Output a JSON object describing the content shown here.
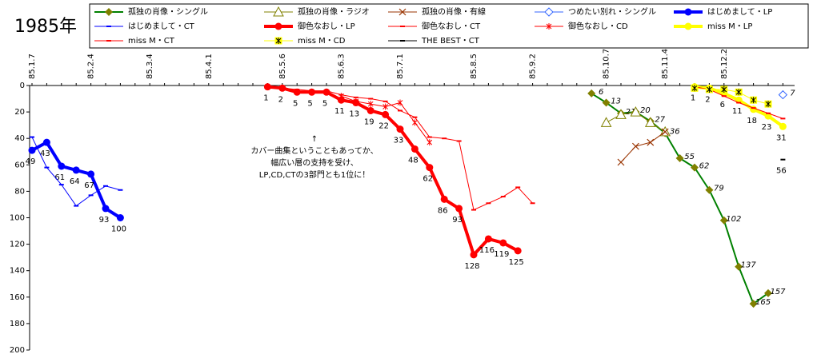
{
  "chart_data": {
    "type": "line",
    "title": "1985年",
    "annotation": [
      "↑",
      "カバー曲集ということもあってか、",
      "幅広い層の支持を受け、",
      "LP,CD,CTの3部門とも1位に！"
    ],
    "categories": [
      "85.1.7",
      null,
      null,
      null,
      "85.2.4",
      null,
      null,
      null,
      "85.3.4",
      null,
      null,
      null,
      "85.4.1",
      null,
      null,
      null,
      null,
      "85.5.6",
      null,
      null,
      null,
      "85.6.3",
      null,
      null,
      null,
      "85.7.1",
      null,
      null,
      null,
      null,
      "85.8.5",
      null,
      null,
      null,
      "85.9.2",
      null,
      null,
      null,
      null,
      "85.10.7",
      null,
      null,
      null,
      "85.11.4",
      null,
      null,
      null,
      "85.12.2",
      null,
      null,
      null,
      null
    ],
    "ylim": [
      200,
      0
    ],
    "yticks": [
      0,
      20,
      40,
      60,
      80,
      100,
      120,
      140,
      160,
      180,
      200
    ],
    "grid": false,
    "series": [
      {
        "name": "孤独の肖像・シングル",
        "color": "#808000",
        "line_color": "#008000",
        "marker": "diamond",
        "line_width": 2,
        "data_labels": true,
        "label_italic": true,
        "values": [
          null,
          null,
          null,
          null,
          null,
          null,
          null,
          null,
          null,
          null,
          null,
          null,
          null,
          null,
          null,
          null,
          null,
          null,
          null,
          null,
          null,
          null,
          null,
          null,
          null,
          null,
          null,
          null,
          null,
          null,
          null,
          null,
          null,
          null,
          null,
          null,
          null,
          null,
          6,
          13,
          21,
          20,
          27,
          36,
          55,
          62,
          79,
          102,
          137,
          165,
          157,
          null
        ]
      },
      {
        "name": "孤独の肖像・ラジオ",
        "color": "#808000",
        "marker": "triangle-open",
        "line_width": 1,
        "values": [
          null,
          null,
          null,
          null,
          null,
          null,
          null,
          null,
          null,
          null,
          null,
          null,
          null,
          null,
          null,
          null,
          null,
          null,
          null,
          null,
          null,
          null,
          null,
          null,
          null,
          null,
          null,
          null,
          null,
          null,
          null,
          null,
          null,
          null,
          null,
          null,
          null,
          null,
          null,
          28,
          22,
          20,
          28,
          35,
          null,
          null,
          null,
          null,
          null,
          null,
          null,
          null
        ]
      },
      {
        "name": "孤独の肖像・有線",
        "color": "#993300",
        "marker": "x",
        "line_width": 1,
        "values": [
          null,
          null,
          null,
          null,
          null,
          null,
          null,
          null,
          null,
          null,
          null,
          null,
          null,
          null,
          null,
          null,
          null,
          null,
          null,
          null,
          null,
          null,
          null,
          null,
          null,
          null,
          null,
          null,
          null,
          null,
          null,
          null,
          null,
          null,
          null,
          null,
          null,
          null,
          null,
          null,
          58,
          46,
          43,
          35,
          null,
          null,
          null,
          null,
          null,
          null,
          null,
          null
        ]
      },
      {
        "name": "つめたい別れ・シングル",
        "color": "#3366ff",
        "marker": "diamond-open",
        "line_width": 1,
        "data_labels": true,
        "label_italic": true,
        "values": [
          null,
          null,
          null,
          null,
          null,
          null,
          null,
          null,
          null,
          null,
          null,
          null,
          null,
          null,
          null,
          null,
          null,
          null,
          null,
          null,
          null,
          null,
          null,
          null,
          null,
          null,
          null,
          null,
          null,
          null,
          null,
          null,
          null,
          null,
          null,
          null,
          null,
          null,
          null,
          null,
          null,
          null,
          null,
          null,
          null,
          null,
          null,
          null,
          null,
          null,
          null,
          7
        ]
      },
      {
        "name": "はじめまして・LP",
        "color": "#0000ff",
        "marker": "circle",
        "line_width": 4,
        "data_labels": true,
        "values": [
          49,
          43,
          61,
          64,
          67,
          93,
          100,
          null,
          null,
          null,
          null,
          null,
          null,
          null,
          null,
          null,
          null,
          null,
          null,
          null,
          null,
          null,
          null,
          null,
          null,
          null,
          null,
          null,
          null,
          null,
          null,
          null,
          null,
          null,
          null,
          null,
          null,
          null,
          null,
          null,
          null,
          null,
          null,
          null,
          null,
          null,
          null,
          null,
          null,
          null,
          null,
          null
        ]
      },
      {
        "name": "はじめまして・CT",
        "color": "#0000ff",
        "marker": "dash",
        "line_width": 1,
        "values": [
          39,
          62,
          75,
          91,
          83,
          76,
          79,
          null,
          null,
          null,
          null,
          null,
          null,
          null,
          null,
          null,
          null,
          null,
          null,
          null,
          null,
          null,
          null,
          null,
          null,
          null,
          null,
          null,
          null,
          null,
          null,
          null,
          null,
          null,
          null,
          null,
          null,
          null,
          null,
          null,
          null,
          null,
          null,
          null,
          null,
          null,
          null,
          null,
          null,
          null,
          null,
          null
        ]
      },
      {
        "name": "御色なおし・LP",
        "color": "#ff0000",
        "marker": "circle",
        "line_width": 4,
        "data_labels": true,
        "values": [
          null,
          null,
          null,
          null,
          null,
          null,
          null,
          null,
          null,
          null,
          null,
          null,
          null,
          null,
          null,
          null,
          1,
          2,
          5,
          5,
          5,
          11,
          13,
          19,
          22,
          33,
          48,
          62,
          86,
          93,
          128,
          116,
          119,
          125,
          null,
          null,
          null,
          null,
          null,
          null,
          null,
          null,
          null,
          null,
          null,
          null,
          null,
          null,
          null,
          null,
          null,
          null
        ]
      },
      {
        "name": "御色なおし・CT",
        "color": "#ff0000",
        "marker": "dash",
        "line_width": 1,
        "values": [
          null,
          null,
          null,
          null,
          null,
          null,
          null,
          null,
          null,
          null,
          null,
          null,
          null,
          null,
          null,
          null,
          null,
          2,
          3,
          4,
          4,
          7,
          9,
          10,
          12,
          19,
          24,
          39,
          40,
          42,
          94,
          89,
          84,
          77,
          89,
          null,
          null,
          null,
          null,
          null,
          null,
          null,
          null,
          null,
          null,
          null,
          null,
          null,
          null,
          null,
          null,
          null
        ]
      },
      {
        "name": "御色なおし・CD",
        "color": "#ff0000",
        "marker": "star",
        "line_width": 1,
        "values": [
          null,
          null,
          null,
          null,
          null,
          null,
          null,
          null,
          null,
          null,
          null,
          null,
          null,
          null,
          null,
          null,
          null,
          null,
          null,
          null,
          null,
          8,
          12,
          14,
          16,
          13,
          28,
          43,
          null,
          null,
          null,
          null,
          null,
          null,
          null,
          null,
          null,
          null,
          null,
          null,
          null,
          null,
          null,
          null,
          null,
          null,
          null,
          null,
          null,
          null,
          null,
          null
        ]
      },
      {
        "name": "miss M・LP",
        "color": "#ffff00",
        "marker": "circle",
        "line_width": 4,
        "data_labels": true,
        "values": [
          null,
          null,
          null,
          null,
          null,
          null,
          null,
          null,
          null,
          null,
          null,
          null,
          null,
          null,
          null,
          null,
          null,
          null,
          null,
          null,
          null,
          null,
          null,
          null,
          null,
          null,
          null,
          null,
          null,
          null,
          null,
          null,
          null,
          null,
          null,
          null,
          null,
          null,
          null,
          null,
          null,
          null,
          null,
          null,
          null,
          1,
          2,
          6,
          11,
          18,
          23,
          31
        ]
      },
      {
        "name": "miss M・CT",
        "color": "#ff0000",
        "marker": "dash",
        "line_width": 1,
        "values": [
          null,
          null,
          null,
          null,
          null,
          null,
          null,
          null,
          null,
          null,
          null,
          null,
          null,
          null,
          null,
          null,
          null,
          null,
          null,
          null,
          null,
          null,
          null,
          null,
          null,
          null,
          null,
          null,
          null,
          null,
          null,
          null,
          null,
          null,
          null,
          null,
          null,
          null,
          null,
          null,
          null,
          null,
          null,
          null,
          null,
          1,
          3,
          8,
          13,
          17,
          21,
          25
        ]
      },
      {
        "name": "miss M・CD",
        "color": "#ffff00",
        "marker": "star-box",
        "line_width": 1,
        "values": [
          null,
          null,
          null,
          null,
          null,
          null,
          null,
          null,
          null,
          null,
          null,
          null,
          null,
          null,
          null,
          null,
          null,
          null,
          null,
          null,
          null,
          null,
          null,
          null,
          null,
          null,
          null,
          null,
          null,
          null,
          null,
          null,
          null,
          null,
          null,
          null,
          null,
          null,
          null,
          null,
          null,
          null,
          null,
          null,
          null,
          2,
          3,
          3,
          5,
          11,
          14,
          null
        ]
      },
      {
        "name": "THE BEST・CT",
        "color": "#000000",
        "marker": "dash",
        "line_width": 1,
        "data_labels": true,
        "values": [
          null,
          null,
          null,
          null,
          null,
          null,
          null,
          null,
          null,
          null,
          null,
          null,
          null,
          null,
          null,
          null,
          null,
          null,
          null,
          null,
          null,
          null,
          null,
          null,
          null,
          null,
          null,
          null,
          null,
          null,
          null,
          null,
          null,
          null,
          null,
          null,
          null,
          null,
          null,
          null,
          null,
          null,
          null,
          null,
          null,
          null,
          null,
          null,
          null,
          null,
          null,
          56
        ]
      }
    ]
  }
}
